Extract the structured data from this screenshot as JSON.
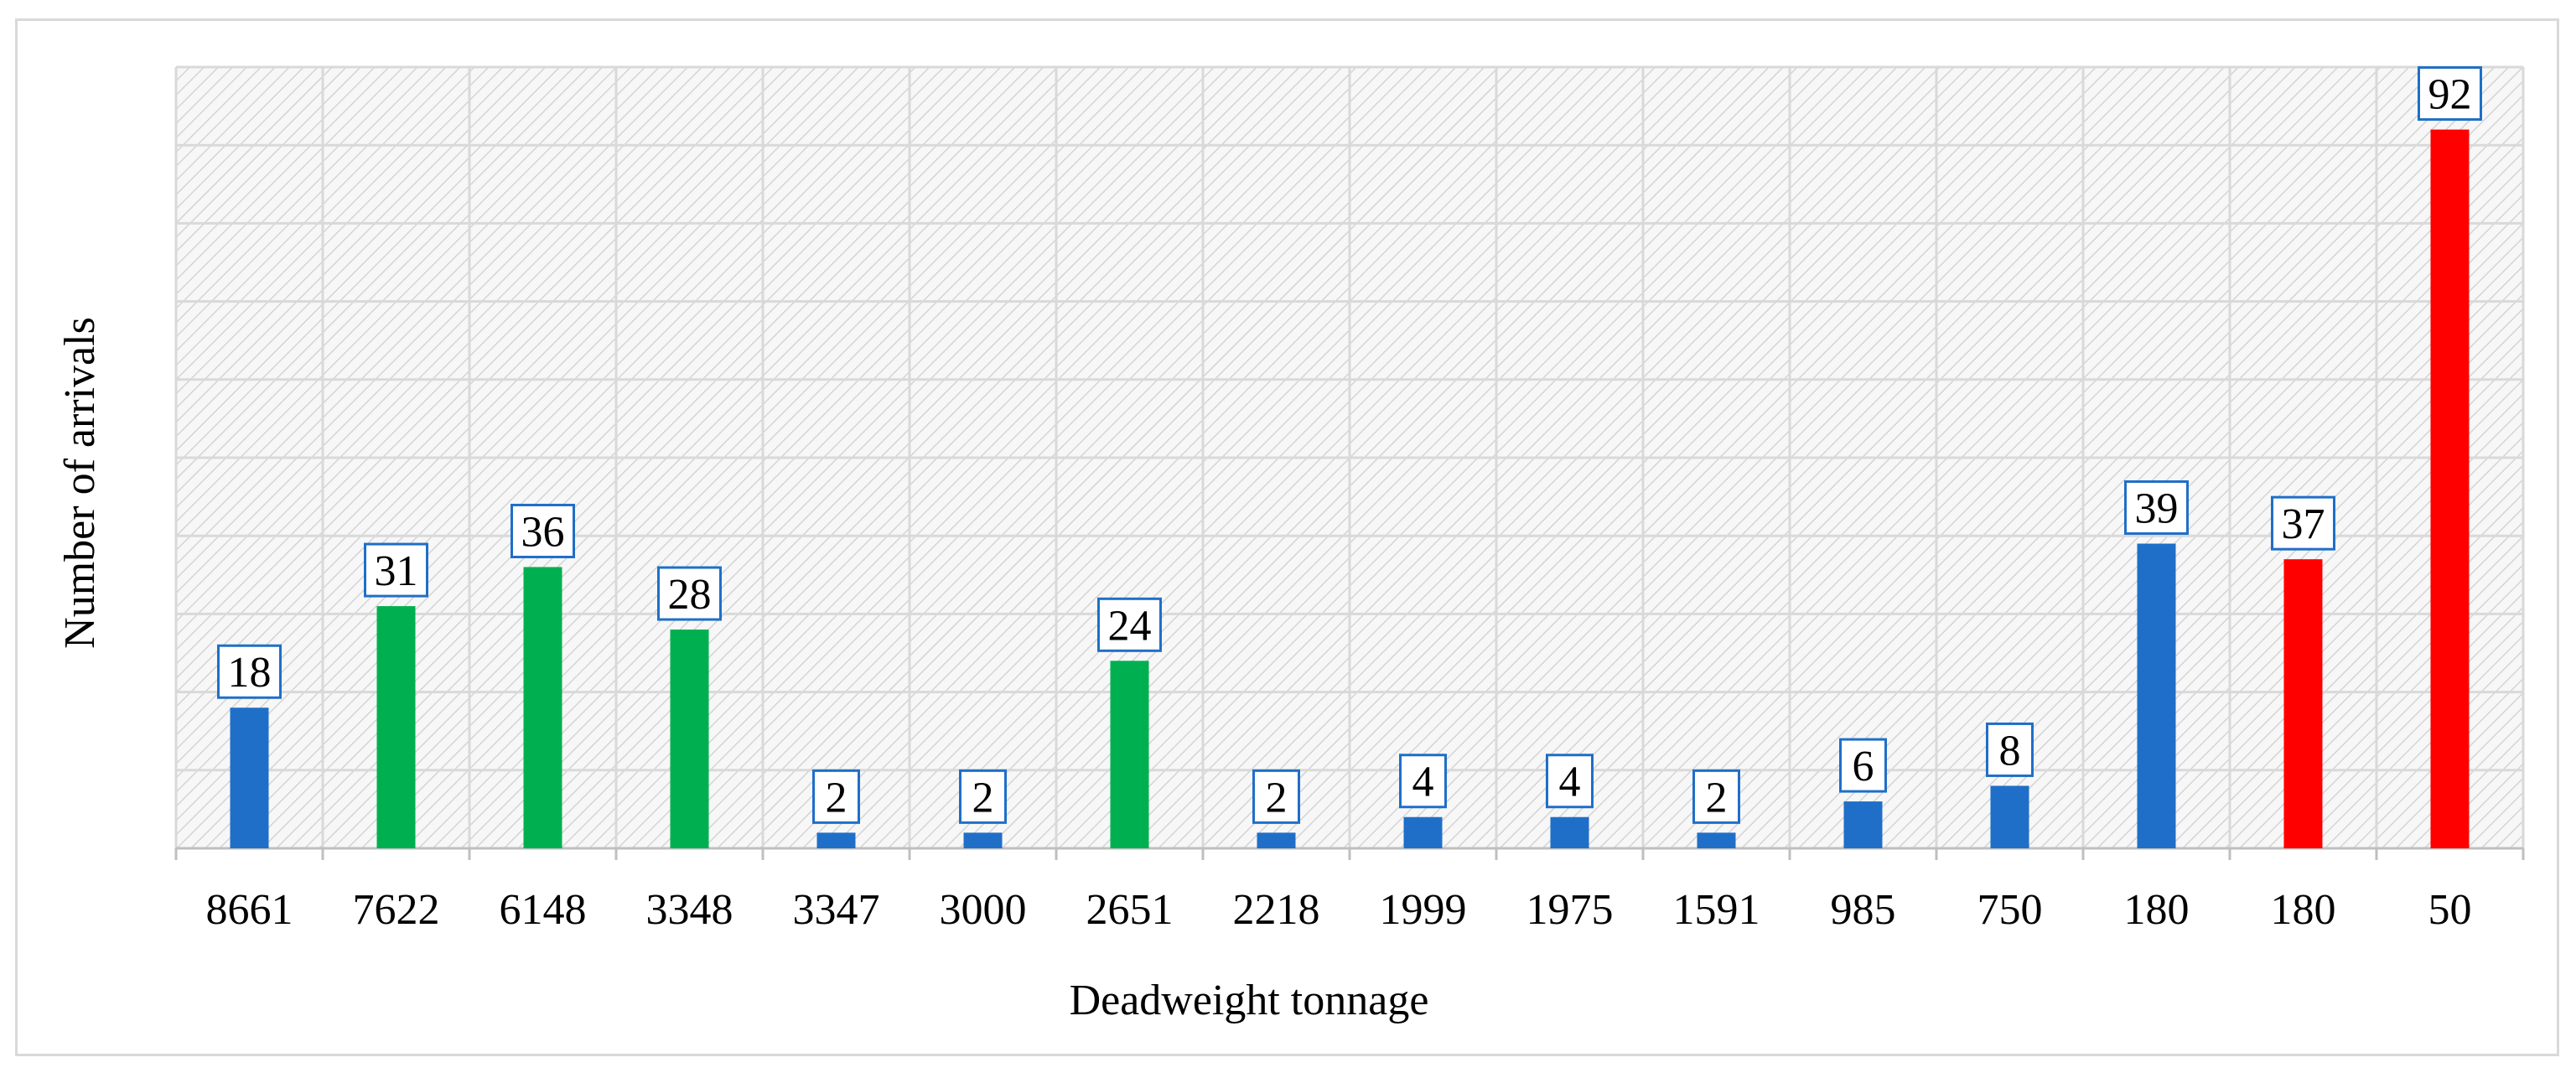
{
  "chart_data": {
    "type": "bar",
    "title": "",
    "xlabel": "Deadweight tonnage",
    "ylabel": "Number of arrivals",
    "categories": [
      "8661",
      "7622",
      "6148",
      "3348",
      "3347",
      "3000",
      "2651",
      "2218",
      "1999",
      "1975",
      "1591",
      "985",
      "750",
      "180",
      "180",
      "50"
    ],
    "values": [
      18,
      31,
      36,
      28,
      2,
      2,
      24,
      2,
      4,
      4,
      2,
      6,
      8,
      39,
      37,
      92
    ],
    "bar_colors": [
      "#1f6fc8",
      "#00b050",
      "#00b050",
      "#00b050",
      "#1f6fc8",
      "#1f6fc8",
      "#00b050",
      "#1f6fc8",
      "#1f6fc8",
      "#1f6fc8",
      "#1f6fc8",
      "#1f6fc8",
      "#1f6fc8",
      "#1f6fc8",
      "#ff0000",
      "#ff0000"
    ],
    "ylim": [
      0,
      100
    ],
    "y_tick_step": 10,
    "y_tick_labels_shown": false,
    "grid": true,
    "plot_background": "diagonal-hatch",
    "data_labels": true,
    "data_label_border_color": "#1f6fc8",
    "legend": "none"
  }
}
